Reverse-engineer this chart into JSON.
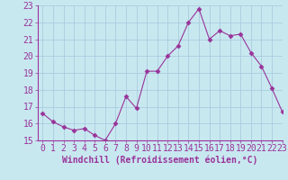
{
  "x": [
    0,
    1,
    2,
    3,
    4,
    5,
    6,
    7,
    8,
    9,
    10,
    11,
    12,
    13,
    14,
    15,
    16,
    17,
    18,
    19,
    20,
    21,
    22,
    23
  ],
  "y": [
    16.6,
    16.1,
    15.8,
    15.6,
    15.7,
    15.3,
    15.0,
    16.0,
    17.6,
    16.9,
    19.1,
    19.1,
    20.0,
    20.6,
    22.0,
    22.8,
    21.0,
    21.5,
    21.2,
    21.3,
    20.2,
    19.4,
    18.1,
    16.7
  ],
  "line_color": "#993399",
  "marker": "D",
  "marker_size": 2.5,
  "bg_color": "#c8e8f0",
  "grid_color": "#aaccdd",
  "xlabel": "Windchill (Refroidissement éolien,°C)",
  "ylabel": "",
  "ylim": [
    15,
    23
  ],
  "xlim": [
    -0.5,
    23
  ],
  "yticks": [
    15,
    16,
    17,
    18,
    19,
    20,
    21,
    22,
    23
  ],
  "xticks": [
    0,
    1,
    2,
    3,
    4,
    5,
    6,
    7,
    8,
    9,
    10,
    11,
    12,
    13,
    14,
    15,
    16,
    17,
    18,
    19,
    20,
    21,
    22,
    23
  ],
  "tick_color": "#993399",
  "label_color": "#993399",
  "axis_color": "#993399",
  "font_size": 7,
  "xlabel_font_size": 7
}
